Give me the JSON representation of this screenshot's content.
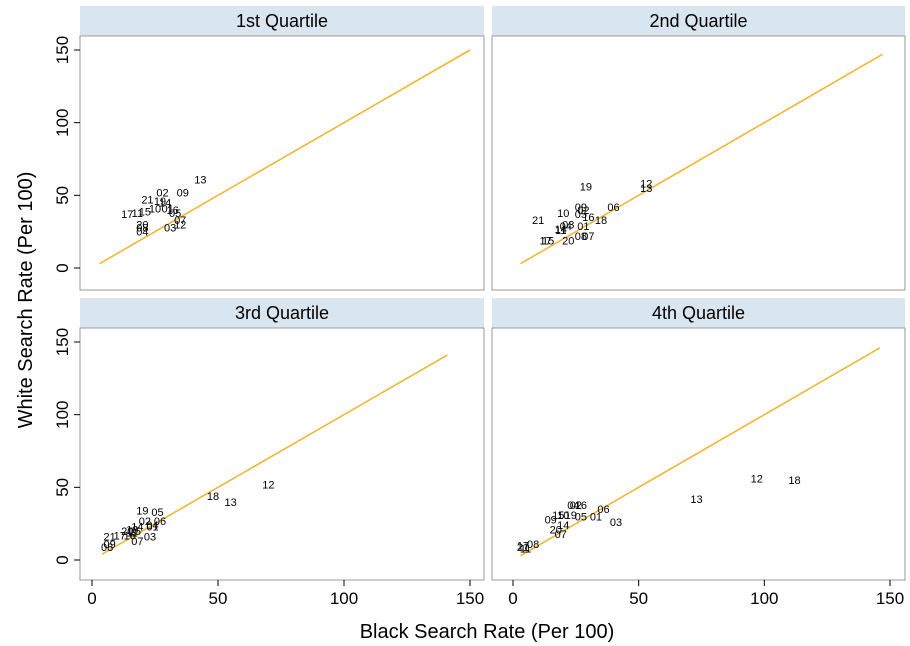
{
  "chart_data": {
    "type": "scatter",
    "xlabel": "Black Search Rate (Per 100)",
    "ylabel": "White Search Rate (Per 100)",
    "xlim": [
      0,
      150
    ],
    "ylim": [
      0,
      150
    ],
    "xticks": [
      "0",
      "50",
      "100",
      "150"
    ],
    "yticks": [
      "0",
      "50",
      "100",
      "150"
    ],
    "colors": {
      "header": "#d9e5ef",
      "line": "#f2b632",
      "panel_bg": "#ffffff"
    },
    "panels": [
      {
        "title": "1st Quartile",
        "line": [
          [
            3,
            3
          ],
          [
            150,
            150
          ]
        ],
        "points": [
          {
            "label": "13",
            "x": 43,
            "y": 61
          },
          {
            "label": "09",
            "x": 36,
            "y": 52
          },
          {
            "label": "02",
            "x": 28,
            "y": 52
          },
          {
            "label": "21",
            "x": 22,
            "y": 47
          },
          {
            "label": "19",
            "x": 27,
            "y": 46
          },
          {
            "label": "14",
            "x": 29,
            "y": 45
          },
          {
            "label": "10",
            "x": 25,
            "y": 41
          },
          {
            "label": "01",
            "x": 30,
            "y": 41
          },
          {
            "label": "15",
            "x": 21,
            "y": 39
          },
          {
            "label": "16",
            "x": 32,
            "y": 40
          },
          {
            "label": "05",
            "x": 33,
            "y": 38
          },
          {
            "label": "17",
            "x": 14,
            "y": 37
          },
          {
            "label": "11",
            "x": 18,
            "y": 38
          },
          {
            "label": "07",
            "x": 35,
            "y": 33
          },
          {
            "label": "12",
            "x": 35,
            "y": 30
          },
          {
            "label": "03",
            "x": 31,
            "y": 28
          },
          {
            "label": "20",
            "x": 20,
            "y": 30
          },
          {
            "label": "08",
            "x": 20,
            "y": 28
          },
          {
            "label": "04",
            "x": 20,
            "y": 25
          }
        ]
      },
      {
        "title": "2nd Quartile",
        "line": [
          [
            3,
            3
          ],
          [
            147,
            147
          ]
        ],
        "points": [
          {
            "label": "19",
            "x": 29,
            "y": 56
          },
          {
            "label": "12",
            "x": 53,
            "y": 58
          },
          {
            "label": "13",
            "x": 53,
            "y": 55
          },
          {
            "label": "06",
            "x": 40,
            "y": 42
          },
          {
            "label": "09",
            "x": 27,
            "y": 42
          },
          {
            "label": "02",
            "x": 28,
            "y": 40
          },
          {
            "label": "10",
            "x": 20,
            "y": 38
          },
          {
            "label": "05",
            "x": 27,
            "y": 37
          },
          {
            "label": "16",
            "x": 30,
            "y": 35
          },
          {
            "label": "21",
            "x": 10,
            "y": 33
          },
          {
            "label": "18",
            "x": 35,
            "y": 33
          },
          {
            "label": "03",
            "x": 22,
            "y": 30
          },
          {
            "label": "04",
            "x": 21,
            "y": 29
          },
          {
            "label": "01",
            "x": 28,
            "y": 29
          },
          {
            "label": "14",
            "x": 19,
            "y": 27
          },
          {
            "label": "11",
            "x": 19,
            "y": 26
          },
          {
            "label": "08",
            "x": 27,
            "y": 22
          },
          {
            "label": "07",
            "x": 30,
            "y": 22
          },
          {
            "label": "17",
            "x": 13,
            "y": 19
          },
          {
            "label": "15",
            "x": 14,
            "y": 19
          },
          {
            "label": "20",
            "x": 22,
            "y": 19
          }
        ]
      },
      {
        "title": "3rd Quartile",
        "line": [
          [
            4,
            4
          ],
          [
            141,
            141
          ]
        ],
        "points": [
          {
            "label": "12",
            "x": 70,
            "y": 52
          },
          {
            "label": "18",
            "x": 48,
            "y": 44
          },
          {
            "label": "13",
            "x": 55,
            "y": 40
          },
          {
            "label": "19",
            "x": 20,
            "y": 34
          },
          {
            "label": "05",
            "x": 26,
            "y": 33
          },
          {
            "label": "02",
            "x": 21,
            "y": 27
          },
          {
            "label": "06",
            "x": 27,
            "y": 27
          },
          {
            "label": "04",
            "x": 24,
            "y": 24
          },
          {
            "label": "01",
            "x": 24,
            "y": 23
          },
          {
            "label": "14",
            "x": 18,
            "y": 23
          },
          {
            "label": "10",
            "x": 16,
            "y": 21
          },
          {
            "label": "20",
            "x": 14,
            "y": 20
          },
          {
            "label": "15",
            "x": 17,
            "y": 20
          },
          {
            "label": "11",
            "x": 16,
            "y": 19
          },
          {
            "label": "16",
            "x": 15,
            "y": 17
          },
          {
            "label": "17",
            "x": 11,
            "y": 17
          },
          {
            "label": "21",
            "x": 7,
            "y": 16
          },
          {
            "label": "03",
            "x": 23,
            "y": 16
          },
          {
            "label": "07",
            "x": 18,
            "y": 13
          },
          {
            "label": "09",
            "x": 7,
            "y": 11
          },
          {
            "label": "08",
            "x": 6,
            "y": 9
          }
        ]
      },
      {
        "title": "4th Quartile",
        "line": [
          [
            3,
            3
          ],
          [
            146,
            146
          ]
        ],
        "points": [
          {
            "label": "12",
            "x": 97,
            "y": 56
          },
          {
            "label": "18",
            "x": 112,
            "y": 55
          },
          {
            "label": "13",
            "x": 73,
            "y": 42
          },
          {
            "label": "04",
            "x": 24,
            "y": 38
          },
          {
            "label": "02",
            "x": 25,
            "y": 38
          },
          {
            "label": "16",
            "x": 27,
            "y": 38
          },
          {
            "label": "06",
            "x": 36,
            "y": 35
          },
          {
            "label": "15",
            "x": 18,
            "y": 31
          },
          {
            "label": "10",
            "x": 20,
            "y": 31
          },
          {
            "label": "19",
            "x": 23,
            "y": 31
          },
          {
            "label": "05",
            "x": 27,
            "y": 30
          },
          {
            "label": "01",
            "x": 33,
            "y": 30
          },
          {
            "label": "09",
            "x": 15,
            "y": 28
          },
          {
            "label": "03",
            "x": 41,
            "y": 26
          },
          {
            "label": "14",
            "x": 20,
            "y": 24
          },
          {
            "label": "20",
            "x": 17,
            "y": 21
          },
          {
            "label": "07",
            "x": 19,
            "y": 18
          },
          {
            "label": "08",
            "x": 8,
            "y": 11
          },
          {
            "label": "17",
            "x": 4,
            "y": 10
          },
          {
            "label": "21",
            "x": 4,
            "y": 9
          },
          {
            "label": "11",
            "x": 5,
            "y": 8
          }
        ]
      }
    ]
  }
}
